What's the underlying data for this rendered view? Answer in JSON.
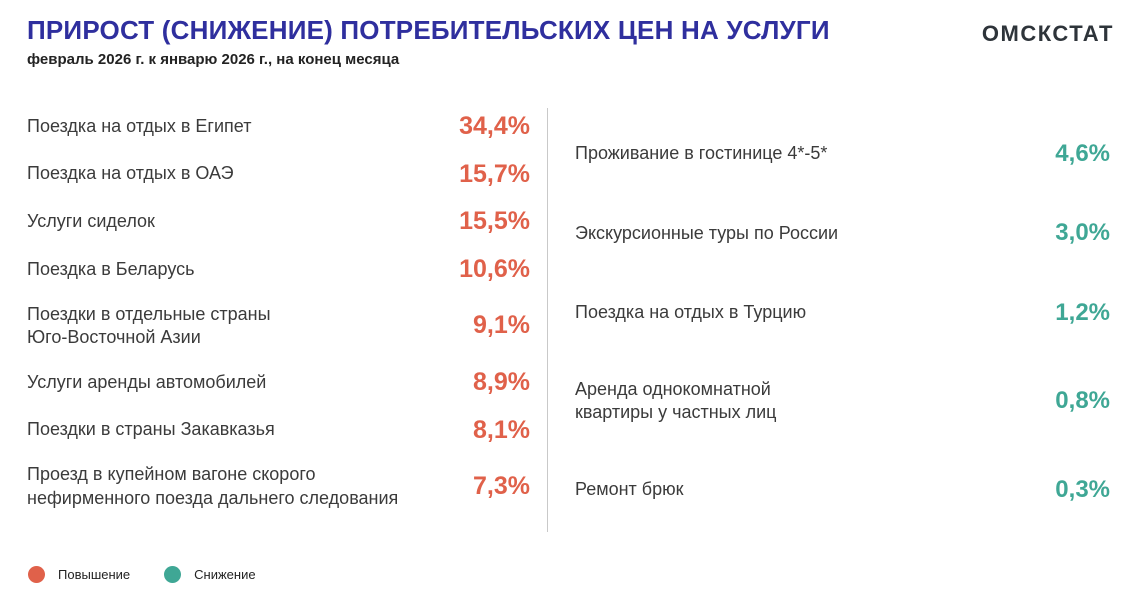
{
  "header": {
    "title": "ПРИРОСТ (СНИЖЕНИЕ) ПОТРЕБИТЕЛЬСКИХ ЦЕН НА УСЛУГИ",
    "subtitle": "февраль 2026 г. к январю 2026 г., на конец месяца",
    "logo": "ОМСКСТАТ"
  },
  "colors": {
    "title": "#2F2F9E",
    "increase": "#E0614A",
    "decrease": "#3FA795",
    "label_text": "#3B3B3B",
    "divider": "#C9C9C9"
  },
  "columns": {
    "increase": {
      "items": [
        {
          "label": "Поездка на отдых в Египет",
          "value": "34,4%"
        },
        {
          "label": "Поездка на отдых в ОАЭ",
          "value": "15,7%"
        },
        {
          "label": "Услуги сиделок",
          "value": "15,5%"
        },
        {
          "label": "Поездка в Беларусь",
          "value": "10,6%"
        },
        {
          "label": "Поездки в отдельные страны\nЮго-Восточной Азии",
          "value": "9,1%"
        },
        {
          "label": "Услуги аренды автомобилей",
          "value": "8,9%"
        },
        {
          "label": "Поездки в страны Закавказья",
          "value": "8,1%"
        },
        {
          "label": "Проезд в купейном вагоне скорого\nнефирменного поезда дальнего следования",
          "value": "7,3%"
        }
      ]
    },
    "decrease": {
      "items": [
        {
          "label": "Проживание в гостинице 4*-5*",
          "value": "4,6%"
        },
        {
          "label": "Экскурсионные туры по России",
          "value": "3,0%"
        },
        {
          "label": "Поездка на отдых в Турцию",
          "value": "1,2%"
        },
        {
          "label": "Аренда однокомнатной\nквартиры у частных лиц",
          "value": "0,8%"
        },
        {
          "label": "Ремонт брюк",
          "value": "0,3%"
        }
      ]
    }
  },
  "legend": {
    "increase_label": "Повышение",
    "decrease_label": "Снижение"
  },
  "chart_data": {
    "type": "table",
    "title": "ПРИРОСТ (СНИЖЕНИЕ) ПОТРЕБИТЕЛЬСКИХ ЦЕН НА УСЛУГИ",
    "subtitle": "февраль 2026 г. к январю 2026 г., на конец месяца",
    "unit": "%",
    "legend_position": "bottom-left",
    "series": [
      {
        "name": "Повышение",
        "color": "#E0614A",
        "categories": [
          "Поездка на отдых в Египет",
          "Поездка на отдых в ОАЭ",
          "Услуги сиделок",
          "Поездка в Беларусь",
          "Поездки в отдельные страны Юго-Восточной Азии",
          "Услуги аренды автомобилей",
          "Поездки в страны Закавказья",
          "Проезд в купейном вагоне скорого нефирменного поезда дальнего следования"
        ],
        "values": [
          34.4,
          15.7,
          15.5,
          10.6,
          9.1,
          8.9,
          8.1,
          7.3
        ]
      },
      {
        "name": "Снижение",
        "color": "#3FA795",
        "categories": [
          "Проживание в гостинице 4*-5*",
          "Экскурсионные туры по России",
          "Поездка на отдых в Турцию",
          "Аренда однокомнатной квартиры у частных лиц",
          "Ремонт брюк"
        ],
        "values": [
          4.6,
          3.0,
          1.2,
          0.8,
          0.3
        ]
      }
    ]
  }
}
